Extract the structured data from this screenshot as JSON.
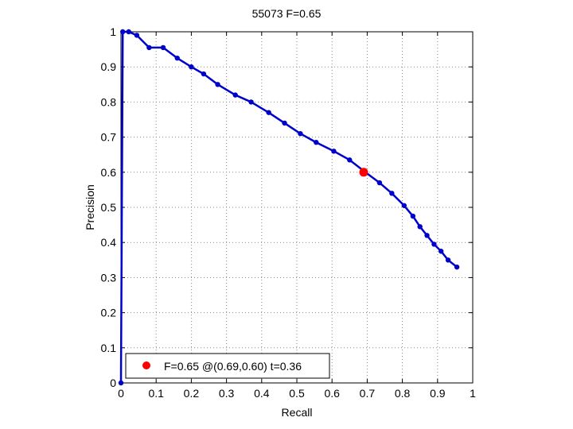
{
  "chart_data": {
    "type": "line",
    "title": "55073 F=0.65",
    "xlabel": "Recall",
    "ylabel": "Precision",
    "xlim": [
      0,
      1
    ],
    "ylim": [
      0,
      1
    ],
    "grid": true,
    "legend_placement": "bottom-left",
    "xticks": [
      0,
      0.1,
      0.2,
      0.3,
      0.4,
      0.5,
      0.6,
      0.7,
      0.8,
      0.9,
      1
    ],
    "yticks": [
      0,
      0.1,
      0.2,
      0.3,
      0.4,
      0.5,
      0.6,
      0.7,
      0.8,
      0.9,
      1
    ],
    "tick_labels": {
      "x": [
        "0",
        "0.1",
        "0.2",
        "0.3",
        "0.4",
        "0.5",
        "0.6",
        "0.7",
        "0.8",
        "0.9",
        "1"
      ],
      "y": [
        "0",
        "0.1",
        "0.2",
        "0.3",
        "0.4",
        "0.5",
        "0.6",
        "0.7",
        "0.8",
        "0.9",
        "1"
      ]
    },
    "colors": {
      "series": "#0000cc",
      "highlight": "#ff0000",
      "grid": "#888888"
    },
    "series": [
      {
        "x": [
          0.0,
          0.005,
          0.022,
          0.045,
          0.08,
          0.12,
          0.16,
          0.2,
          0.235,
          0.275,
          0.325,
          0.37,
          0.42,
          0.465,
          0.51,
          0.555,
          0.605,
          0.65,
          0.695,
          0.735,
          0.77,
          0.805,
          0.83,
          0.85,
          0.87,
          0.89,
          0.91,
          0.93,
          0.955
        ],
        "y": [
          0.0,
          1.0,
          1.0,
          0.99,
          0.955,
          0.955,
          0.925,
          0.9,
          0.88,
          0.85,
          0.82,
          0.8,
          0.77,
          0.74,
          0.71,
          0.685,
          0.66,
          0.635,
          0.6,
          0.57,
          0.54,
          0.505,
          0.475,
          0.445,
          0.42,
          0.395,
          0.375,
          0.35,
          0.33
        ]
      }
    ],
    "highlight_point": {
      "x": 0.69,
      "y": 0.6
    },
    "legend": {
      "label": "F=0.65 @(0.69,0.60) t=0.36"
    }
  }
}
